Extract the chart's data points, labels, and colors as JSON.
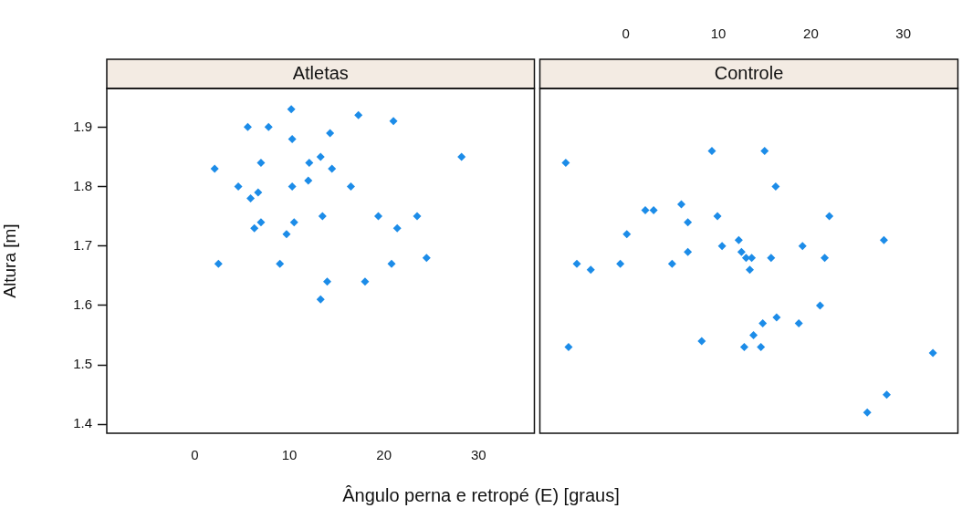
{
  "chart_data": [
    {
      "type": "scatter",
      "title": "Atletas",
      "xlabel": "Ângulo perna e retropé (E) [graus]",
      "ylabel": "Altura [m]",
      "xlim": [
        -9.3,
        35.9
      ],
      "xticks": [
        0,
        10,
        20,
        30
      ],
      "ylim": [
        1.385,
        1.965
      ],
      "yticks": [
        1.4,
        1.5,
        1.6,
        1.7,
        1.8,
        1.9
      ],
      "marker": "diamond",
      "grid": false,
      "legend": false,
      "series": [
        {
          "color": "#1c8ce8",
          "x": [
            2.1,
            5.6,
            7.8,
            10.2,
            17.3,
            21.0,
            10.3,
            14.3,
            7.0,
            12.1,
            13.3,
            14.5,
            28.2,
            4.6,
            10.3,
            12.0,
            16.5,
            6.7,
            5.9,
            13.5,
            19.4,
            23.5,
            7.0,
            10.5,
            6.3,
            21.4,
            9.7,
            2.5,
            9.0,
            20.8,
            24.5,
            14.0,
            18.0,
            13.3
          ],
          "values": [
            1.83,
            1.9,
            1.9,
            1.93,
            1.92,
            1.91,
            1.88,
            1.89,
            1.84,
            1.84,
            1.85,
            1.83,
            1.85,
            1.8,
            1.8,
            1.81,
            1.8,
            1.79,
            1.78,
            1.75,
            1.75,
            1.75,
            1.74,
            1.74,
            1.73,
            1.73,
            1.72,
            1.67,
            1.67,
            1.67,
            1.68,
            1.64,
            1.64,
            1.61
          ]
        }
      ]
    },
    {
      "type": "scatter",
      "title": "Controle",
      "xlim": [
        -9.3,
        35.9
      ],
      "xticks": [
        0,
        10,
        20,
        30
      ],
      "ylim": [
        1.385,
        1.965
      ],
      "tick_labels": "x",
      "marker": "diamond",
      "grid": false,
      "legend": false,
      "series": [
        {
          "color": "#1c8ce8",
          "x": [
            -6.5,
            9.3,
            15.0,
            16.2,
            6.0,
            2.1,
            3.0,
            9.9,
            22.0,
            6.7,
            0.1,
            12.2,
            27.9,
            19.1,
            10.4,
            6.7,
            12.5,
            13.0,
            13.6,
            15.7,
            21.5,
            -5.3,
            5.0,
            -3.8,
            -0.6,
            13.4,
            21.0,
            16.3,
            14.8,
            18.7,
            13.8,
            8.2,
            -6.2,
            12.8,
            14.6,
            33.2,
            28.2,
            26.1
          ],
          "values": [
            1.84,
            1.86,
            1.86,
            1.8,
            1.77,
            1.76,
            1.76,
            1.75,
            1.75,
            1.74,
            1.72,
            1.71,
            1.71,
            1.7,
            1.7,
            1.69,
            1.69,
            1.68,
            1.68,
            1.68,
            1.68,
            1.67,
            1.67,
            1.66,
            1.67,
            1.66,
            1.6,
            1.58,
            1.57,
            1.57,
            1.55,
            1.54,
            1.53,
            1.53,
            1.53,
            1.52,
            1.45,
            1.42
          ]
        }
      ]
    }
  ]
}
